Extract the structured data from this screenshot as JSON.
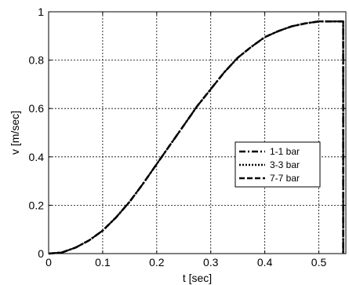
{
  "chart_data": {
    "type": "line",
    "title": "",
    "xlabel": "t [sec]",
    "ylabel": "v [m/sec]",
    "xlim": [
      0,
      0.55
    ],
    "ylim": [
      0,
      1
    ],
    "xticks": [
      0,
      0.1,
      0.2,
      0.3,
      0.4,
      0.5
    ],
    "xtick_labels": [
      "0",
      "0.1",
      "0.2",
      "0.3",
      "0.4",
      "0.5"
    ],
    "yticks": [
      0,
      0.2,
      0.4,
      0.6,
      0.8,
      1
    ],
    "ytick_labels": [
      "0",
      "0.2",
      "0.4",
      "0.6",
      "0.8",
      "1"
    ],
    "grid": true,
    "legend_position": "center-right",
    "x": [
      0,
      0.025,
      0.05,
      0.075,
      0.1,
      0.125,
      0.15,
      0.175,
      0.2,
      0.225,
      0.25,
      0.275,
      0.3,
      0.325,
      0.35,
      0.375,
      0.4,
      0.425,
      0.45,
      0.475,
      0.5,
      0.525,
      0.545,
      0.545
    ],
    "series": [
      {
        "name": "1-1 bar",
        "style": "dash-dot",
        "values": [
          0,
          0.005,
          0.025,
          0.055,
          0.095,
          0.15,
          0.215,
          0.29,
          0.37,
          0.45,
          0.53,
          0.61,
          0.68,
          0.75,
          0.81,
          0.855,
          0.895,
          0.92,
          0.94,
          0.952,
          0.96,
          0.96,
          0.96,
          0
        ]
      },
      {
        "name": "3-3 bar",
        "style": "dotted",
        "values": [
          0,
          0.005,
          0.025,
          0.055,
          0.095,
          0.15,
          0.215,
          0.29,
          0.37,
          0.45,
          0.53,
          0.61,
          0.68,
          0.75,
          0.81,
          0.855,
          0.895,
          0.92,
          0.94,
          0.952,
          0.96,
          0.96,
          0.96,
          0
        ]
      },
      {
        "name": "7-7 bar",
        "style": "dashed",
        "values": [
          0,
          0.005,
          0.025,
          0.055,
          0.095,
          0.15,
          0.215,
          0.29,
          0.37,
          0.45,
          0.53,
          0.61,
          0.68,
          0.75,
          0.81,
          0.855,
          0.895,
          0.92,
          0.94,
          0.952,
          0.96,
          0.96,
          0.96,
          0
        ]
      }
    ]
  }
}
